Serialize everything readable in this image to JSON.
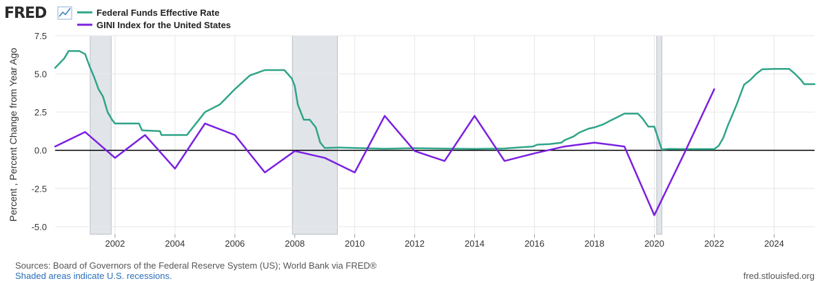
{
  "logo": {
    "text": "FRED"
  },
  "legend": [
    {
      "label": "Federal Funds Effective Rate",
      "color": "#2fa489"
    },
    {
      "label": "GINI Index for the United States",
      "color": "#7b1fe0"
    }
  ],
  "footer": {
    "sources": "Sources: Board of Governors of the Federal Reserve System (US); World Bank via FRED®",
    "shaded": "Shaded areas indicate U.S. recessions.",
    "site": "fred.stlouisfed.org"
  },
  "chart_data": {
    "type": "line",
    "ylabel": "Percent , Percent Change from Year Ago",
    "xlim": [
      2000.0,
      2025.35
    ],
    "ylim": [
      -5.5,
      7.5
    ],
    "yticks": [
      7.5,
      5.0,
      2.5,
      0.0,
      -2.5,
      -5.0
    ],
    "ytick_labels": [
      "7.5",
      "5.0",
      "2.5",
      "0.0",
      "-2.5",
      "-5.0"
    ],
    "xticks": [
      2002,
      2004,
      2006,
      2008,
      2010,
      2012,
      2014,
      2016,
      2018,
      2020,
      2022,
      2024
    ],
    "xtick_labels": [
      "2002",
      "2004",
      "2006",
      "2008",
      "2010",
      "2012",
      "2014",
      "2016",
      "2018",
      "2020",
      "2022",
      "2024"
    ],
    "zero_line": 0,
    "recessions": [
      [
        2001.17,
        2001.87
      ],
      [
        2007.92,
        2009.42
      ],
      [
        2020.08,
        2020.25
      ]
    ],
    "series": [
      {
        "name": "Federal Funds Effective Rate",
        "color": "#2fa489",
        "x": [
          2000.0,
          2000.15,
          2000.3,
          2000.45,
          2000.6,
          2000.8,
          2001.0,
          2001.15,
          2001.3,
          2001.45,
          2001.6,
          2001.75,
          2001.9,
          2002.0,
          2002.5,
          2002.8,
          2002.9,
          2003.5,
          2003.55,
          2004.0,
          2004.4,
          2004.5,
          2004.8,
          2005.0,
          2005.5,
          2006.0,
          2006.5,
          2007.0,
          2007.5,
          2007.65,
          2007.9,
          2008.0,
          2008.1,
          2008.3,
          2008.5,
          2008.7,
          2008.85,
          2009.0,
          2009.5,
          2010.0,
          2011.0,
          2012.0,
          2013.0,
          2014.0,
          2015.0,
          2015.95,
          2016.1,
          2016.5,
          2016.9,
          2017.0,
          2017.3,
          2017.5,
          2017.8,
          2018.0,
          2018.3,
          2018.5,
          2018.8,
          2019.0,
          2019.45,
          2019.6,
          2019.8,
          2020.0,
          2020.15,
          2020.25,
          2020.5,
          2021.0,
          2021.5,
          2022.0,
          2022.15,
          2022.3,
          2022.45,
          2022.6,
          2022.75,
          2022.9,
          2023.0,
          2023.2,
          2023.4,
          2023.6,
          2024.0,
          2024.5,
          2024.7,
          2024.9,
          2025.0,
          2025.35
        ],
        "y": [
          5.4,
          5.7,
          6.0,
          6.5,
          6.5,
          6.5,
          6.3,
          5.5,
          4.8,
          4.0,
          3.5,
          2.5,
          2.0,
          1.75,
          1.75,
          1.75,
          1.3,
          1.25,
          1.0,
          1.0,
          1.0,
          1.25,
          2.0,
          2.5,
          3.0,
          4.0,
          4.9,
          5.25,
          5.25,
          5.25,
          4.7,
          4.2,
          3.0,
          2.0,
          2.0,
          1.5,
          0.5,
          0.15,
          0.18,
          0.15,
          0.1,
          0.14,
          0.11,
          0.09,
          0.12,
          0.25,
          0.37,
          0.4,
          0.5,
          0.66,
          0.9,
          1.16,
          1.41,
          1.5,
          1.7,
          1.91,
          2.2,
          2.4,
          2.4,
          2.1,
          1.55,
          1.55,
          0.65,
          0.05,
          0.09,
          0.08,
          0.08,
          0.08,
          0.3,
          0.8,
          1.6,
          2.3,
          3.0,
          3.8,
          4.3,
          4.6,
          5.0,
          5.3,
          5.33,
          5.33,
          5.0,
          4.6,
          4.33,
          4.33
        ]
      },
      {
        "name": "GINI Index for the United States",
        "color": "#7b1fe0",
        "x": [
          2000,
          2001,
          2002,
          2003,
          2004,
          2005,
          2006,
          2007,
          2008,
          2009,
          2010,
          2011,
          2012,
          2013,
          2014,
          2015,
          2016,
          2017,
          2018,
          2019,
          2020,
          2021,
          2022
        ],
        "y": [
          0.25,
          1.2,
          -0.5,
          1.0,
          -1.2,
          1.75,
          1.0,
          -1.45,
          -0.05,
          -0.5,
          -1.45,
          2.25,
          -0.05,
          -0.7,
          2.25,
          -0.7,
          -0.2,
          0.25,
          0.5,
          0.25,
          -4.25,
          -0.2,
          4.0
        ]
      }
    ]
  }
}
